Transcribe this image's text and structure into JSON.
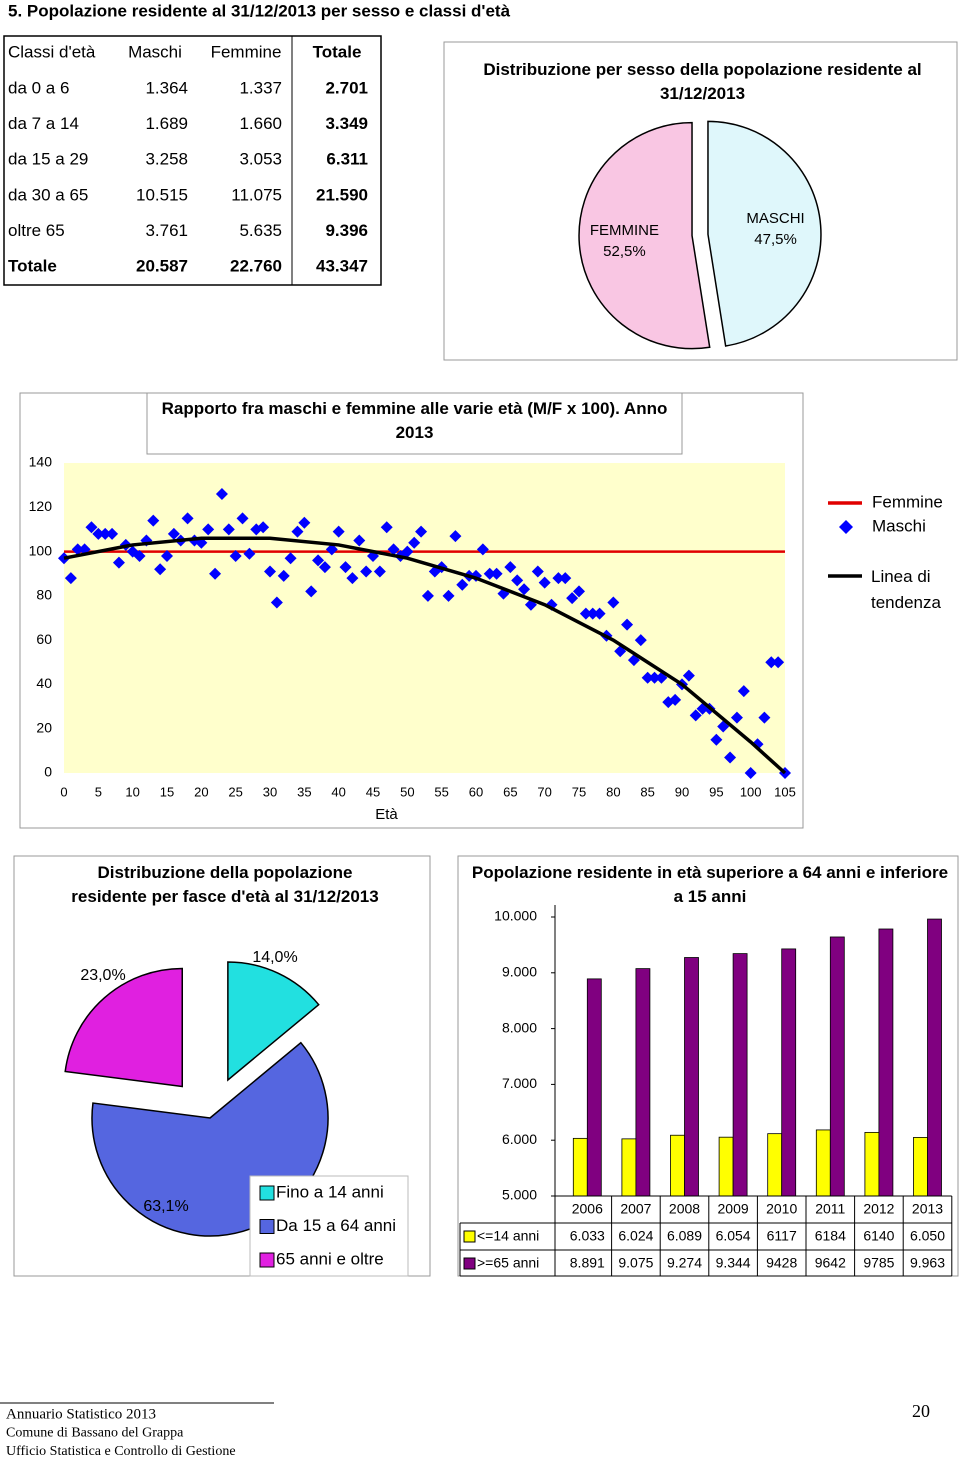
{
  "heading": "5. Popolazione residente al 31/12/2013 per sesso e classi d'età",
  "table": {
    "header": [
      "Classi d'età",
      "Maschi",
      "Femmine",
      "Totale"
    ],
    "rows": [
      [
        "da 0 a 6",
        "1.364",
        "1.337",
        "2.701"
      ],
      [
        "da 7 a 14",
        "1.689",
        "1.660",
        "3.349"
      ],
      [
        "da 15 a 29",
        "3.258",
        "3.053",
        "6.311"
      ],
      [
        "da 30 a 65",
        "10.515",
        "11.075",
        "21.590"
      ],
      [
        "oltre 65",
        "3.761",
        "5.635",
        "9.396"
      ],
      [
        "Totale",
        "20.587",
        "22.760",
        "43.347"
      ]
    ]
  },
  "chart_data": [
    {
      "type": "pie",
      "title": "Distribuzione per sesso della popolazione residente al 31/12/2013",
      "categories": [
        "FEMMINE",
        "MASCHI"
      ],
      "values": [
        52.5,
        47.5
      ],
      "value_labels": [
        "52,5%",
        "47,5%"
      ],
      "colors": [
        "#f9c6e3",
        "#dff7fb"
      ]
    },
    {
      "type": "scatter",
      "title": "Rapporto fra maschi e femmine alle varie età (M/F x 100). Anno 2013",
      "x_label": "Età",
      "xlim": [
        0,
        105
      ],
      "xticks": [
        0,
        5,
        10,
        15,
        20,
        25,
        30,
        35,
        40,
        45,
        50,
        55,
        60,
        65,
        70,
        75,
        80,
        85,
        90,
        95,
        100,
        105
      ],
      "ylim": [
        0,
        140
      ],
      "yticks": [
        0,
        20,
        40,
        60,
        80,
        100,
        120,
        140
      ],
      "legend": "right",
      "series": [
        {
          "name": "Femmine",
          "color": "#e00000",
          "mode": "line",
          "x": [
            0,
            105
          ],
          "values": [
            100,
            100
          ]
        },
        {
          "name": "Maschi",
          "color": "#0000ff",
          "mode": "markers",
          "x": [
            0,
            1,
            2,
            3,
            4,
            5,
            6,
            7,
            8,
            9,
            10,
            11,
            12,
            13,
            14,
            15,
            16,
            17,
            18,
            19,
            20,
            21,
            22,
            23,
            24,
            25,
            26,
            27,
            28,
            29,
            30,
            31,
            32,
            33,
            34,
            35,
            36,
            37,
            38,
            39,
            40,
            41,
            42,
            43,
            44,
            45,
            46,
            47,
            48,
            49,
            50,
            51,
            52,
            53,
            54,
            55,
            56,
            57,
            58,
            59,
            60,
            61,
            62,
            63,
            64,
            65,
            66,
            67,
            68,
            69,
            70,
            71,
            72,
            73,
            74,
            75,
            76,
            77,
            78,
            79,
            80,
            81,
            82,
            83,
            84,
            85,
            86,
            87,
            88,
            89,
            90,
            91,
            92,
            93,
            94,
            95,
            96,
            97,
            98,
            99,
            100,
            101,
            102,
            103,
            104,
            105
          ],
          "values": [
            97,
            88,
            101,
            101,
            111,
            108,
            108,
            108,
            95,
            103,
            100,
            98,
            105,
            114,
            92,
            98,
            108,
            105,
            115,
            105,
            104,
            110,
            90,
            126,
            110,
            98,
            115,
            99,
            110,
            111,
            91,
            77,
            89,
            97,
            109,
            113,
            82,
            96,
            93,
            101,
            109,
            93,
            88,
            105,
            91,
            98,
            91,
            111,
            101,
            98,
            100,
            104,
            109,
            80,
            91,
            93,
            80,
            107,
            85,
            89,
            89,
            101,
            90,
            90,
            81,
            93,
            87,
            83,
            76,
            91,
            86,
            76,
            88,
            88,
            79,
            82,
            72,
            72,
            72,
            62,
            77,
            55,
            67,
            51,
            60,
            43,
            43,
            43,
            32,
            33,
            40,
            44,
            26,
            29,
            29,
            15,
            21,
            7,
            25,
            37,
            0,
            13,
            25,
            50,
            50,
            0
          ]
        },
        {
          "name": "Linea di tendenza",
          "color": "#000000",
          "mode": "line",
          "x": [
            0,
            10,
            20,
            30,
            40,
            50,
            60,
            70,
            80,
            90,
            100,
            105
          ],
          "values": [
            97,
            103,
            106,
            106,
            103,
            97,
            88,
            76,
            60,
            40,
            14,
            0
          ]
        }
      ]
    },
    {
      "type": "pie",
      "title": "Distribuzione della popolazione residente per fasce d'età al 31/12/2013",
      "categories": [
        "Fino a 14 anni",
        "Da 15 a 64 anni",
        "65 anni e oltre"
      ],
      "values": [
        14.0,
        63.1,
        23.0
      ],
      "value_labels": [
        "14,0%",
        "63,1%",
        "23,0%"
      ],
      "colors": [
        "#22e0e0",
        "#5566e0",
        "#e020e0"
      ],
      "legend": "bottom-right"
    },
    {
      "type": "bar",
      "title": "Popolazione residente in età superiore a 64 anni e inferiore a 15 anni",
      "categories": [
        "2006",
        "2007",
        "2008",
        "2009",
        "2010",
        "2011",
        "2012",
        "2013"
      ],
      "ylim": [
        5000,
        10000
      ],
      "yticks": [
        {
          "value": 5000,
          "label": "5.000"
        },
        {
          "value": 6000,
          "label": "6.000"
        },
        {
          "value": 7000,
          "label": "7.000"
        },
        {
          "value": 8000,
          "label": "8.000"
        },
        {
          "value": 9000,
          "label": "9.000"
        },
        {
          "value": 10000,
          "label": "10.000"
        }
      ],
      "series": [
        {
          "name": "<=14 anni",
          "color": "#ffff00",
          "values": [
            6033,
            6024,
            6089,
            6054,
            6117,
            6184,
            6140,
            6050
          ],
          "value_labels": [
            "6.033",
            "6.024",
            "6.089",
            "6.054",
            "6117",
            "6184",
            "6140",
            "6.050"
          ]
        },
        {
          "name": ">=65 anni",
          "color": "#800080",
          "values": [
            8891,
            9075,
            9274,
            9344,
            9428,
            9642,
            9785,
            9963
          ],
          "value_labels": [
            "8.891",
            "9.075",
            "9.274",
            "9.344",
            "9428",
            "9642",
            "9785",
            "9.963"
          ]
        }
      ]
    }
  ],
  "footer": {
    "lines": [
      "Annuario Statistico 2013",
      "Comune di Bassano del Grappa",
      "Ufficio Statistica e Controllo di Gestione"
    ],
    "page": "20"
  }
}
